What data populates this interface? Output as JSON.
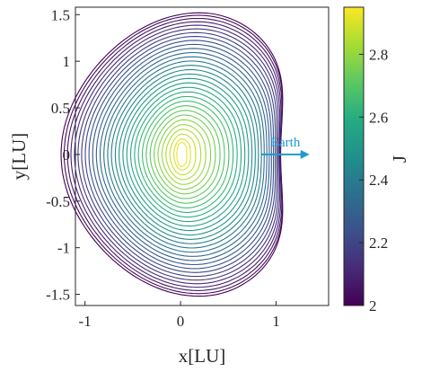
{
  "chart_data": {
    "type": "contour",
    "title": "",
    "xlabel": "x[LU]",
    "ylabel": "y[LU]",
    "xlim": [
      -1.1,
      1.55
    ],
    "ylim": [
      -1.62,
      1.58
    ],
    "xticks": [
      -1,
      0,
      1
    ],
    "xtick_labels": [
      "-1",
      "0",
      "1"
    ],
    "yticks": [
      1.5,
      1,
      0.5,
      0,
      -0.5,
      -1,
      -1.5
    ],
    "ytick_labels": [
      "1.5",
      "1",
      "0.5",
      "0",
      "-0.5",
      "-1",
      "-1.5"
    ],
    "colorbar": {
      "label": "J",
      "range": [
        2.0,
        2.95
      ],
      "ticks": [
        2,
        2.2,
        2.4,
        2.6,
        2.8
      ],
      "tick_labels": [
        "2",
        "2.2",
        "2.4",
        "2.6",
        "2.8"
      ],
      "colormap": "viridis"
    },
    "contour_levels": [
      2.0,
      2.03,
      2.06,
      2.09,
      2.12,
      2.15,
      2.18,
      2.21,
      2.24,
      2.27,
      2.3,
      2.33,
      2.36,
      2.39,
      2.42,
      2.45,
      2.48,
      2.51,
      2.54,
      2.57,
      2.6,
      2.63,
      2.66,
      2.69,
      2.72,
      2.75,
      2.78,
      2.81,
      2.84,
      2.87,
      2.9,
      2.93
    ],
    "center": [
      0.0,
      0.0
    ],
    "annotation": {
      "text": "Earth",
      "arrow_from": [
        0.85,
        0.0
      ],
      "arrow_to": [
        1.35,
        0.0
      ],
      "color": "#1f9bd0"
    },
    "grid": false
  }
}
